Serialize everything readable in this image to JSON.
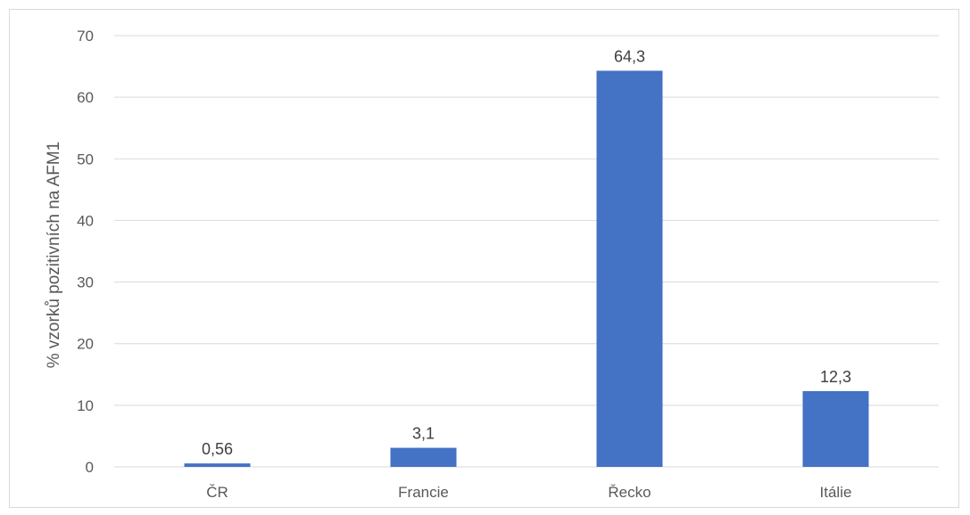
{
  "chart_data": {
    "type": "bar",
    "categories": [
      "ČR",
      "Francie",
      "Řecko",
      "Itálie"
    ],
    "values": [
      0.56,
      3.1,
      64.3,
      12.3
    ],
    "data_labels": [
      "0,56",
      "3,1",
      "64,3",
      "12,3"
    ],
    "title": "",
    "xlabel": "",
    "ylabel": "% vzorků pozitivních na AFM1",
    "ylim": [
      0,
      70
    ],
    "yticks": [
      0,
      10,
      20,
      30,
      40,
      50,
      60,
      70
    ],
    "ytick_labels": [
      "0",
      "10",
      "20",
      "30",
      "40",
      "50",
      "60",
      "70"
    ],
    "grid": true,
    "legend": "none",
    "bar_color": "#4472c4"
  }
}
